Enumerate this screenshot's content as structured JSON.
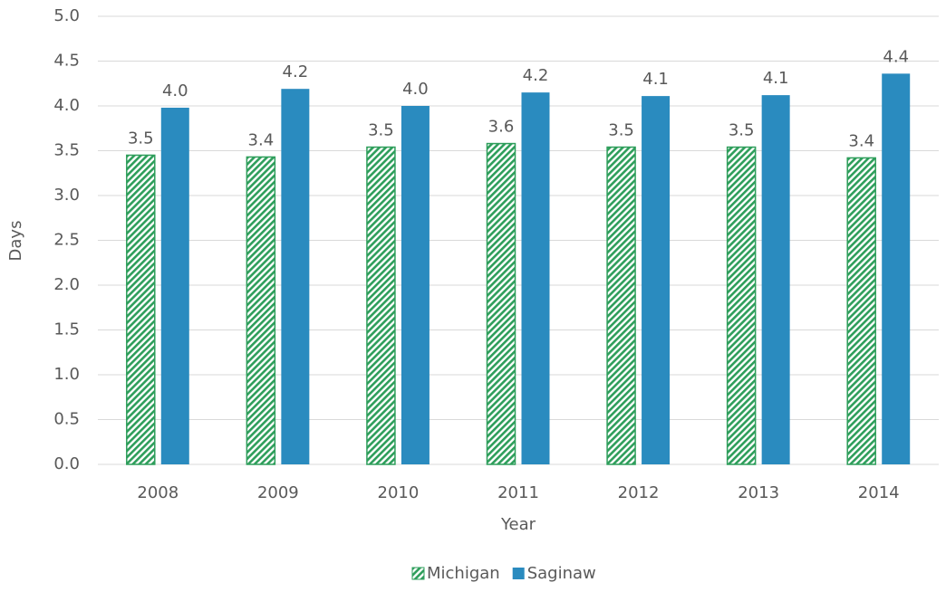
{
  "chart_data": {
    "type": "bar",
    "x_label": "Year",
    "y_label": "Days",
    "categories": [
      "2008",
      "2009",
      "2010",
      "2011",
      "2012",
      "2013",
      "2014"
    ],
    "series": [
      {
        "name": "Michigan",
        "color": "#2e9e5b",
        "pattern": "diagonal-stripes",
        "values": [
          3.45,
          3.43,
          3.54,
          3.58,
          3.54,
          3.54,
          3.42
        ],
        "value_labels": [
          "3.5",
          "3.4",
          "3.5",
          "3.6",
          "3.5",
          "3.5",
          "3.4"
        ]
      },
      {
        "name": "Saginaw",
        "color": "#2a8bbf",
        "values": [
          3.98,
          4.19,
          4.0,
          4.15,
          4.11,
          4.12,
          4.36
        ],
        "value_labels": [
          "4.0",
          "4.2",
          "4.0",
          "4.2",
          "4.1",
          "4.1",
          "4.4"
        ]
      }
    ],
    "ylim": [
      0,
      5
    ],
    "yticks": [
      {
        "value": 0,
        "label": "0.0"
      },
      {
        "value": 0.5,
        "label": "0.5"
      },
      {
        "value": 1,
        "label": "1.0"
      },
      {
        "value": 1.5,
        "label": "1.5"
      },
      {
        "value": 2,
        "label": "2.0"
      },
      {
        "value": 2.5,
        "label": "2.5"
      },
      {
        "value": 3,
        "label": "3.0"
      },
      {
        "value": 3.5,
        "label": "3.5"
      },
      {
        "value": 4,
        "label": "4.0"
      },
      {
        "value": 4.5,
        "label": "4.5"
      },
      {
        "value": 5,
        "label": "5.0"
      }
    ],
    "grid": true,
    "legend": "bottom"
  }
}
